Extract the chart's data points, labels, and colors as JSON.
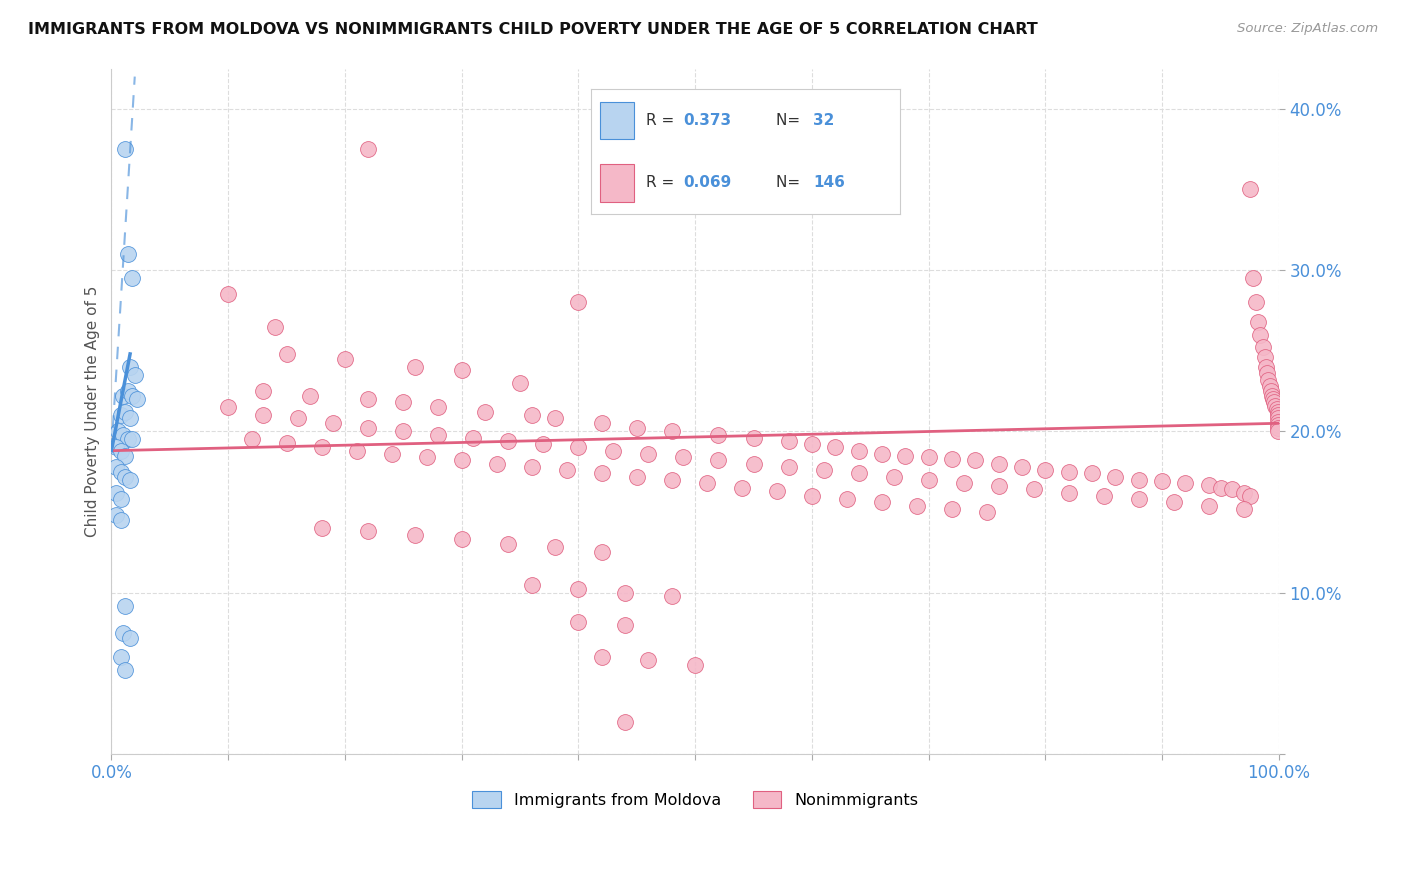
{
  "title": "IMMIGRANTS FROM MOLDOVA VS NONIMMIGRANTS CHILD POVERTY UNDER THE AGE OF 5 CORRELATION CHART",
  "source": "Source: ZipAtlas.com",
  "ylabel": "Child Poverty Under the Age of 5",
  "xlim": [
    0,
    1.0
  ],
  "ylim": [
    0,
    0.425
  ],
  "blue_color": "#b8d4f0",
  "pink_color": "#f5b8c8",
  "blue_line_color": "#4a90d9",
  "pink_line_color": "#e06080",
  "scatter_blue": [
    [
      0.012,
      0.375
    ],
    [
      0.014,
      0.31
    ],
    [
      0.018,
      0.295
    ],
    [
      0.016,
      0.24
    ],
    [
      0.02,
      0.235
    ],
    [
      0.01,
      0.222
    ],
    [
      0.014,
      0.225
    ],
    [
      0.018,
      0.222
    ],
    [
      0.022,
      0.22
    ],
    [
      0.008,
      0.21
    ],
    [
      0.012,
      0.212
    ],
    [
      0.016,
      0.208
    ],
    [
      0.006,
      0.2
    ],
    [
      0.01,
      0.198
    ],
    [
      0.014,
      0.195
    ],
    [
      0.018,
      0.195
    ],
    [
      0.004,
      0.19
    ],
    [
      0.008,
      0.188
    ],
    [
      0.012,
      0.185
    ],
    [
      0.004,
      0.178
    ],
    [
      0.008,
      0.175
    ],
    [
      0.012,
      0.172
    ],
    [
      0.016,
      0.17
    ],
    [
      0.004,
      0.162
    ],
    [
      0.008,
      0.158
    ],
    [
      0.004,
      0.148
    ],
    [
      0.008,
      0.145
    ],
    [
      0.012,
      0.092
    ],
    [
      0.01,
      0.075
    ],
    [
      0.016,
      0.072
    ],
    [
      0.008,
      0.06
    ],
    [
      0.012,
      0.052
    ]
  ],
  "scatter_pink": [
    [
      0.22,
      0.375
    ],
    [
      0.1,
      0.285
    ],
    [
      0.14,
      0.265
    ],
    [
      0.4,
      0.28
    ],
    [
      0.15,
      0.248
    ],
    [
      0.2,
      0.245
    ],
    [
      0.26,
      0.24
    ],
    [
      0.3,
      0.238
    ],
    [
      0.35,
      0.23
    ],
    [
      0.13,
      0.225
    ],
    [
      0.17,
      0.222
    ],
    [
      0.22,
      0.22
    ],
    [
      0.25,
      0.218
    ],
    [
      0.28,
      0.215
    ],
    [
      0.32,
      0.212
    ],
    [
      0.36,
      0.21
    ],
    [
      0.38,
      0.208
    ],
    [
      0.42,
      0.205
    ],
    [
      0.45,
      0.202
    ],
    [
      0.48,
      0.2
    ],
    [
      0.52,
      0.198
    ],
    [
      0.55,
      0.196
    ],
    [
      0.58,
      0.194
    ],
    [
      0.6,
      0.192
    ],
    [
      0.62,
      0.19
    ],
    [
      0.64,
      0.188
    ],
    [
      0.66,
      0.186
    ],
    [
      0.68,
      0.185
    ],
    [
      0.7,
      0.184
    ],
    [
      0.72,
      0.183
    ],
    [
      0.74,
      0.182
    ],
    [
      0.76,
      0.18
    ],
    [
      0.78,
      0.178
    ],
    [
      0.8,
      0.176
    ],
    [
      0.82,
      0.175
    ],
    [
      0.84,
      0.174
    ],
    [
      0.86,
      0.172
    ],
    [
      0.88,
      0.17
    ],
    [
      0.9,
      0.169
    ],
    [
      0.92,
      0.168
    ],
    [
      0.94,
      0.167
    ],
    [
      0.95,
      0.165
    ],
    [
      0.96,
      0.164
    ],
    [
      0.97,
      0.162
    ],
    [
      0.975,
      0.16
    ],
    [
      0.1,
      0.215
    ],
    [
      0.13,
      0.21
    ],
    [
      0.16,
      0.208
    ],
    [
      0.19,
      0.205
    ],
    [
      0.22,
      0.202
    ],
    [
      0.25,
      0.2
    ],
    [
      0.28,
      0.198
    ],
    [
      0.31,
      0.196
    ],
    [
      0.34,
      0.194
    ],
    [
      0.37,
      0.192
    ],
    [
      0.4,
      0.19
    ],
    [
      0.43,
      0.188
    ],
    [
      0.46,
      0.186
    ],
    [
      0.49,
      0.184
    ],
    [
      0.52,
      0.182
    ],
    [
      0.55,
      0.18
    ],
    [
      0.58,
      0.178
    ],
    [
      0.61,
      0.176
    ],
    [
      0.64,
      0.174
    ],
    [
      0.67,
      0.172
    ],
    [
      0.7,
      0.17
    ],
    [
      0.73,
      0.168
    ],
    [
      0.76,
      0.166
    ],
    [
      0.79,
      0.164
    ],
    [
      0.82,
      0.162
    ],
    [
      0.85,
      0.16
    ],
    [
      0.88,
      0.158
    ],
    [
      0.91,
      0.156
    ],
    [
      0.94,
      0.154
    ],
    [
      0.97,
      0.152
    ],
    [
      0.12,
      0.195
    ],
    [
      0.15,
      0.193
    ],
    [
      0.18,
      0.19
    ],
    [
      0.21,
      0.188
    ],
    [
      0.24,
      0.186
    ],
    [
      0.27,
      0.184
    ],
    [
      0.3,
      0.182
    ],
    [
      0.33,
      0.18
    ],
    [
      0.36,
      0.178
    ],
    [
      0.39,
      0.176
    ],
    [
      0.42,
      0.174
    ],
    [
      0.45,
      0.172
    ],
    [
      0.48,
      0.17
    ],
    [
      0.51,
      0.168
    ],
    [
      0.54,
      0.165
    ],
    [
      0.57,
      0.163
    ],
    [
      0.6,
      0.16
    ],
    [
      0.63,
      0.158
    ],
    [
      0.66,
      0.156
    ],
    [
      0.69,
      0.154
    ],
    [
      0.72,
      0.152
    ],
    [
      0.75,
      0.15
    ],
    [
      0.18,
      0.14
    ],
    [
      0.22,
      0.138
    ],
    [
      0.26,
      0.136
    ],
    [
      0.3,
      0.133
    ],
    [
      0.34,
      0.13
    ],
    [
      0.38,
      0.128
    ],
    [
      0.42,
      0.125
    ],
    [
      0.36,
      0.105
    ],
    [
      0.4,
      0.102
    ],
    [
      0.44,
      0.1
    ],
    [
      0.48,
      0.098
    ],
    [
      0.4,
      0.082
    ],
    [
      0.44,
      0.08
    ],
    [
      0.42,
      0.06
    ],
    [
      0.46,
      0.058
    ],
    [
      0.5,
      0.055
    ],
    [
      0.44,
      0.02
    ],
    [
      0.975,
      0.35
    ],
    [
      0.978,
      0.295
    ],
    [
      0.98,
      0.28
    ],
    [
      0.982,
      0.268
    ],
    [
      0.984,
      0.26
    ],
    [
      0.986,
      0.252
    ],
    [
      0.988,
      0.246
    ],
    [
      0.989,
      0.24
    ],
    [
      0.99,
      0.236
    ],
    [
      0.991,
      0.232
    ],
    [
      0.992,
      0.228
    ],
    [
      0.993,
      0.225
    ],
    [
      0.994,
      0.222
    ],
    [
      0.995,
      0.22
    ],
    [
      0.996,
      0.218
    ],
    [
      0.997,
      0.216
    ],
    [
      0.998,
      0.214
    ],
    [
      0.999,
      0.212
    ],
    [
      0.999,
      0.21
    ],
    [
      0.999,
      0.208
    ],
    [
      0.999,
      0.206
    ],
    [
      0.999,
      0.204
    ],
    [
      0.999,
      0.202
    ],
    [
      0.999,
      0.2
    ]
  ],
  "background_color": "#ffffff",
  "grid_color": "#dddddd"
}
